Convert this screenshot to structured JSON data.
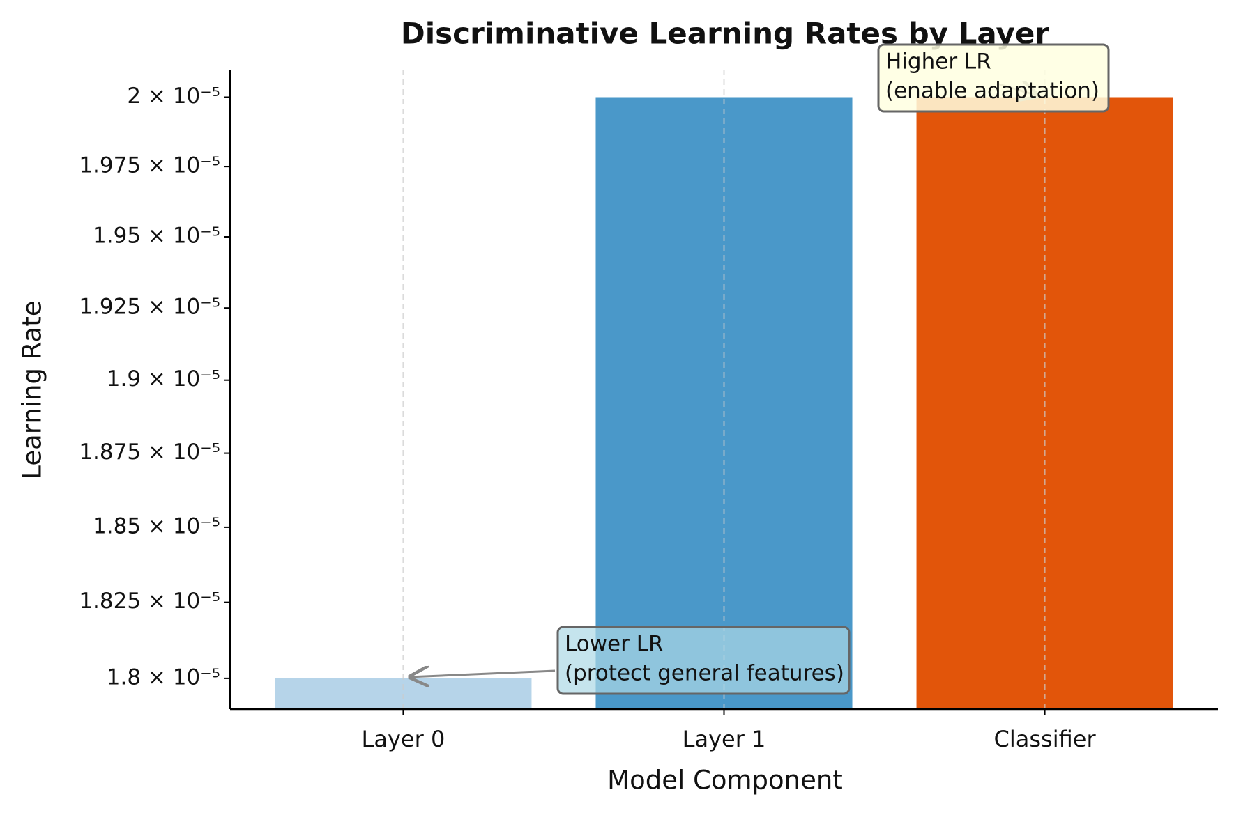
{
  "chart_data": {
    "type": "bar",
    "title": "Discriminative Learning Rates by Layer",
    "x_label": "Model Component",
    "y_label": "Learning Rate",
    "categories": [
      "Layer 0",
      "Layer 1",
      "Classifier"
    ],
    "values": [
      1.8e-05,
      2e-05,
      2e-05
    ],
    "colors": [
      "#b6d4e9",
      "#4a98c9",
      "#e2550a"
    ],
    "y_scale": "log",
    "ylim": [
      1.79e-05,
      2.01e-05
    ],
    "yticks": [
      {
        "value": 1.8e-05,
        "label": "1.8 × 10⁻⁵"
      },
      {
        "value": 1.825e-05,
        "label": "1.825 × 10⁻⁵"
      },
      {
        "value": 1.85e-05,
        "label": "1.85 × 10⁻⁵"
      },
      {
        "value": 1.875e-05,
        "label": "1.875 × 10⁻⁵"
      },
      {
        "value": 1.9e-05,
        "label": "1.9 × 10⁻⁵"
      },
      {
        "value": 1.925e-05,
        "label": "1.925 × 10⁻⁵"
      },
      {
        "value": 1.95e-05,
        "label": "1.95 × 10⁻⁵"
      },
      {
        "value": 1.975e-05,
        "label": "1.975 × 10⁻⁵"
      },
      {
        "value": 2e-05,
        "label": "2 × 10⁻⁵"
      }
    ],
    "grid": "x",
    "annotations": [
      {
        "lines": [
          "Lower LR",
          "(protect general features)"
        ]
      },
      {
        "lines": [
          "Higher LR",
          "(enable adaptation)"
        ]
      }
    ]
  }
}
